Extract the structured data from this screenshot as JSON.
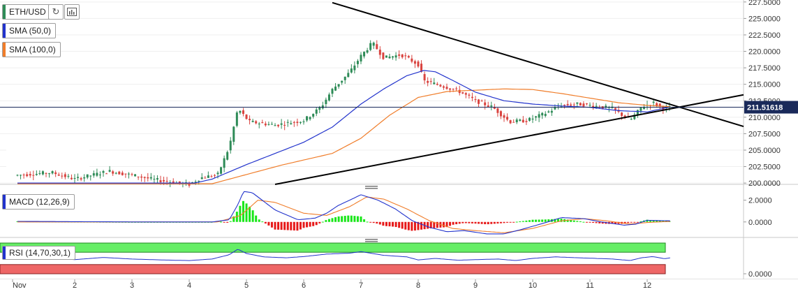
{
  "toolbar": {
    "symbol": "ETH/USD",
    "refresh_icon": "refresh-icon",
    "indicator_icon": "bar-indicator-icon"
  },
  "indicators": {
    "sma50_label": "SMA (50,0)",
    "sma100_label": "SMA (100,0)",
    "macd_label": "MACD (12,26,9)",
    "rsi_label": "RSI (14,70,30,1)"
  },
  "colors": {
    "up": "#2e8b57",
    "down": "#d9433f",
    "sma50": "#2233cc",
    "sma100": "#f07d2a",
    "macd_pos": "#19e619",
    "macd_neg": "#e61919",
    "macd_line": "#2233cc",
    "signal_line": "#f07d2a",
    "rsi_line": "#2233cc",
    "rsi_overbought": "#66ee66",
    "rsi_oversold": "#ee6666",
    "trendline": "#000000",
    "price_marker": "#1a2a5a"
  },
  "chart_data": {
    "type": "candlestick",
    "price_axis": {
      "ticks": [
        "227.5000",
        "225.0000",
        "222.5000",
        "220.0000",
        "217.5000",
        "215.0000",
        "212.5000",
        "210.0000",
        "207.5000",
        "205.0000",
        "202.5000",
        "200.0000"
      ],
      "range": [
        199.8,
        227.8
      ]
    },
    "current_price": "211.51618",
    "x_axis": {
      "labels": [
        "Nov",
        "2",
        "3",
        "4",
        "5",
        "6",
        "7",
        "8",
        "9",
        "10",
        "11",
        "12"
      ],
      "day_index": [
        0,
        1,
        2,
        3,
        4,
        5,
        6,
        7,
        8,
        9,
        10,
        11
      ]
    },
    "price_keypoints": [
      [
        0.0,
        201.2
      ],
      [
        0.6,
        201.6
      ],
      [
        1.0,
        200.6
      ],
      [
        1.6,
        201.8
      ],
      [
        2.0,
        201.2
      ],
      [
        2.4,
        200.5
      ],
      [
        3.0,
        199.8
      ],
      [
        3.2,
        200.8
      ],
      [
        3.5,
        201.3
      ],
      [
        3.7,
        205.5
      ],
      [
        3.85,
        211.3
      ],
      [
        4.05,
        209.3
      ],
      [
        4.5,
        208.8
      ],
      [
        5.0,
        209.5
      ],
      [
        5.3,
        211.5
      ],
      [
        5.5,
        214.2
      ],
      [
        5.8,
        216.8
      ],
      [
        6.0,
        219.3
      ],
      [
        6.2,
        221.3
      ],
      [
        6.4,
        219.0
      ],
      [
        6.7,
        219.5
      ],
      [
        7.0,
        218.0
      ],
      [
        7.1,
        215.5
      ],
      [
        7.4,
        214.8
      ],
      [
        7.7,
        214.0
      ],
      [
        8.0,
        212.5
      ],
      [
        8.3,
        211.5
      ],
      [
        8.6,
        209.3
      ],
      [
        8.9,
        209.5
      ],
      [
        9.2,
        210.5
      ],
      [
        9.5,
        211.8
      ],
      [
        9.8,
        212.0
      ],
      [
        10.1,
        211.7
      ],
      [
        10.4,
        211.3
      ],
      [
        10.7,
        209.5
      ],
      [
        10.9,
        211.5
      ],
      [
        11.1,
        212.2
      ],
      [
        11.3,
        211.3
      ],
      [
        11.42,
        211.5
      ]
    ],
    "sma50": [
      [
        0.0,
        200.0
      ],
      [
        3.1,
        200.0
      ],
      [
        3.4,
        200.6
      ],
      [
        4.0,
        202.8
      ],
      [
        4.5,
        204.5
      ],
      [
        5.0,
        206.2
      ],
      [
        5.5,
        208.5
      ],
      [
        6.0,
        212.0
      ],
      [
        6.4,
        214.3
      ],
      [
        6.8,
        216.3
      ],
      [
        7.1,
        217.1
      ],
      [
        7.3,
        216.9
      ],
      [
        7.6,
        215.6
      ],
      [
        8.0,
        213.8
      ],
      [
        8.5,
        212.5
      ],
      [
        9.0,
        212.0
      ],
      [
        9.5,
        211.7
      ],
      [
        10.0,
        211.5
      ],
      [
        10.5,
        211.0
      ],
      [
        11.0,
        210.8
      ],
      [
        11.42,
        211.6
      ]
    ],
    "sma100": [
      [
        0.0,
        199.9
      ],
      [
        3.4,
        199.9
      ],
      [
        4.0,
        201.3
      ],
      [
        4.6,
        202.7
      ],
      [
        5.0,
        203.5
      ],
      [
        5.5,
        204.5
      ],
      [
        6.0,
        206.8
      ],
      [
        6.5,
        210.3
      ],
      [
        7.0,
        213.0
      ],
      [
        7.5,
        213.9
      ],
      [
        8.0,
        214.1
      ],
      [
        8.5,
        214.3
      ],
      [
        9.0,
        214.2
      ],
      [
        9.5,
        213.6
      ],
      [
        10.0,
        212.9
      ],
      [
        10.5,
        212.2
      ],
      [
        11.0,
        211.8
      ],
      [
        11.42,
        211.6
      ]
    ],
    "trendlines": [
      {
        "from": [
          5.5,
          227.4
        ],
        "to": [
          11.42,
          211.9
        ]
      },
      {
        "from": [
          4.5,
          199.8
        ],
        "to": [
          11.42,
          211.3
        ]
      }
    ],
    "macd": {
      "ticks": [
        "2.0000",
        "0.0000"
      ],
      "range": [
        -1.3,
        3.2
      ],
      "macd_keypoints": [
        [
          0.0,
          0.05
        ],
        [
          2.0,
          0.0
        ],
        [
          3.4,
          0.0
        ],
        [
          3.7,
          0.2
        ],
        [
          3.85,
          1.6
        ],
        [
          3.95,
          2.8
        ],
        [
          4.1,
          2.7
        ],
        [
          4.5,
          1.1
        ],
        [
          4.9,
          0.2
        ],
        [
          5.2,
          0.35
        ],
        [
          5.4,
          0.8
        ],
        [
          5.6,
          1.5
        ],
        [
          6.0,
          2.5
        ],
        [
          6.3,
          2.0
        ],
        [
          6.6,
          1.2
        ],
        [
          6.9,
          0.1
        ],
        [
          7.2,
          -0.5
        ],
        [
          7.5,
          -0.9
        ],
        [
          7.8,
          -0.8
        ],
        [
          8.2,
          -1.1
        ],
        [
          8.5,
          -1.1
        ],
        [
          8.8,
          -0.7
        ],
        [
          9.2,
          -0.1
        ],
        [
          9.5,
          0.4
        ],
        [
          9.9,
          0.3
        ],
        [
          10.2,
          0.0
        ],
        [
          10.6,
          -0.3
        ],
        [
          10.8,
          -0.2
        ],
        [
          11.0,
          0.15
        ],
        [
          11.42,
          0.1
        ]
      ],
      "signal_keypoints": [
        [
          0.0,
          0.0
        ],
        [
          3.5,
          0.0
        ],
        [
          3.9,
          0.6
        ],
        [
          4.2,
          2.0
        ],
        [
          4.5,
          1.8
        ],
        [
          5.0,
          0.8
        ],
        [
          5.4,
          0.6
        ],
        [
          5.8,
          1.4
        ],
        [
          6.1,
          2.3
        ],
        [
          6.4,
          2.1
        ],
        [
          6.8,
          1.2
        ],
        [
          7.2,
          0.1
        ],
        [
          7.6,
          -0.6
        ],
        [
          8.0,
          -0.8
        ],
        [
          8.5,
          -1.0
        ],
        [
          9.0,
          -0.6
        ],
        [
          9.5,
          0.1
        ],
        [
          9.9,
          0.3
        ],
        [
          10.3,
          0.1
        ],
        [
          10.7,
          -0.2
        ],
        [
          11.0,
          -0.05
        ],
        [
          11.42,
          0.05
        ]
      ]
    },
    "rsi": {
      "ticks": [
        "0.0000"
      ],
      "overbought": 70,
      "oversold": 30,
      "keypoints": [
        [
          0.0,
          50
        ],
        [
          0.5,
          52
        ],
        [
          1.0,
          46
        ],
        [
          1.5,
          53
        ],
        [
          2.0,
          48
        ],
        [
          2.5,
          45
        ],
        [
          3.0,
          43
        ],
        [
          3.4,
          48
        ],
        [
          3.7,
          62
        ],
        [
          3.85,
          80
        ],
        [
          4.0,
          66
        ],
        [
          4.3,
          55
        ],
        [
          4.7,
          52
        ],
        [
          5.0,
          56
        ],
        [
          5.4,
          64
        ],
        [
          5.8,
          67
        ],
        [
          6.0,
          72
        ],
        [
          6.2,
          66
        ],
        [
          6.4,
          60
        ],
        [
          6.8,
          55
        ],
        [
          7.0,
          45
        ],
        [
          7.3,
          50
        ],
        [
          7.7,
          44
        ],
        [
          8.0,
          46
        ],
        [
          8.4,
          48
        ],
        [
          8.7,
          43
        ],
        [
          9.0,
          50
        ],
        [
          9.4,
          55
        ],
        [
          9.8,
          52
        ],
        [
          10.1,
          50
        ],
        [
          10.4,
          48
        ],
        [
          10.7,
          43
        ],
        [
          10.9,
          52
        ],
        [
          11.1,
          56
        ],
        [
          11.3,
          49
        ],
        [
          11.42,
          52
        ]
      ]
    }
  }
}
